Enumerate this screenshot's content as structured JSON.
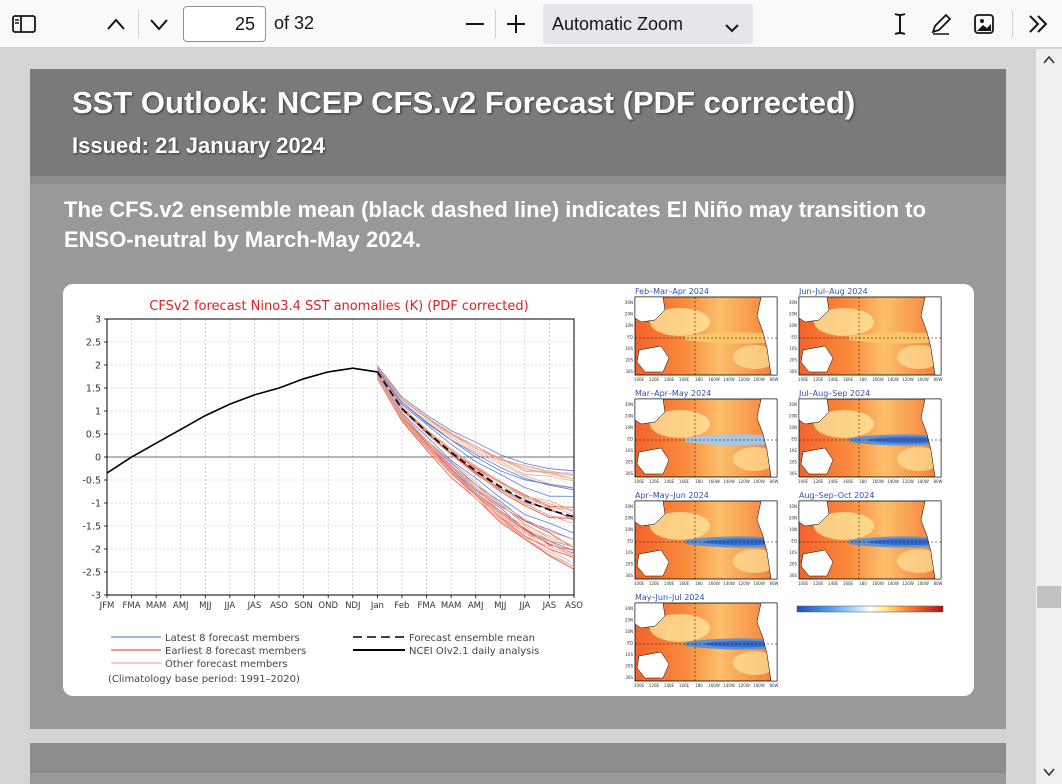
{
  "toolbar": {
    "page_number": "25",
    "page_count_label": "of 32",
    "zoom_label": "Automatic Zoom"
  },
  "slide": {
    "title": "SST Outlook: NCEP CFS.v2 Forecast (PDF corrected)",
    "issued": "Issued: 21 January 2024",
    "description": "The CFS.v2 ensemble mean (black dashed line) indicates El Niño may transition to ENSO-neutral by March-May 2024."
  },
  "plume": {
    "title": "CFSv2 forecast Nino3.4 SST anomalies (K) (PDF corrected)",
    "y_ticks": [
      "3",
      "2.5",
      "2",
      "1.5",
      "1",
      "0.5",
      "0",
      "-0.5",
      "-1",
      "-1.5",
      "-2",
      "-2.5",
      "-3"
    ],
    "x_ticks": [
      "JFM",
      "FMA",
      "MAM",
      "AMJ",
      "MJJ",
      "JJA",
      "JAS",
      "ASO",
      "SON",
      "OND",
      "NDJ",
      "Jan",
      "Feb",
      "FMA",
      "MAM",
      "AMJ",
      "MJJ",
      "JJA",
      "JAS",
      "ASO"
    ],
    "legend": {
      "latest": "Latest 8 forecast members",
      "earliest": "Earliest 8 forecast members",
      "other": "Other forecast members",
      "mean": "Forecast ensemble mean",
      "obs": "NCEI OIv2.1 daily analysis",
      "climatology": "(Climatology base period: 1991–2020)"
    },
    "colors": {
      "latest": "#4a6fdc",
      "earliest": "#e03a2a",
      "other": "#e7a08a"
    }
  },
  "maps": {
    "panels": [
      "Feb–Mar–Apr 2024",
      "Jun–Jul–Aug 2024",
      "Mar–Apr–May 2024",
      "Jul–Aug–Sep 2024",
      "Apr–May–Jun 2024",
      "Aug–Sep–Oct 2024",
      "May–Jun–Jul 2024"
    ],
    "lat_labels": [
      "30N",
      "20N",
      "10N",
      "EQ",
      "10S",
      "20S",
      "30S"
    ],
    "lon_labels": [
      "100E",
      "120E",
      "140E",
      "160E",
      "180",
      "160W",
      "140W",
      "120W",
      "100W",
      "80W"
    ]
  },
  "chart_data": {
    "type": "line",
    "title": "CFSv2 forecast Nino3.4 SST anomalies (K) (PDF corrected)",
    "categories": [
      "JFM",
      "FMA",
      "MAM",
      "AMJ",
      "MJJ",
      "JJA",
      "JAS",
      "ASO",
      "SON",
      "OND",
      "NDJ",
      "Jan",
      "Feb",
      "FMA",
      "MAM",
      "AMJ",
      "MJJ",
      "JJA",
      "JAS",
      "ASO"
    ],
    "ylim": [
      -3,
      3
    ],
    "grid": true,
    "series": [
      {
        "name": "NCEI OIv2.1 daily analysis",
        "values": [
          -0.35,
          0.0,
          0.3,
          0.6,
          0.9,
          1.15,
          1.35,
          1.5,
          1.7,
          1.85,
          1.93,
          1.85,
          null,
          null,
          null,
          null,
          null,
          null,
          null,
          null
        ]
      },
      {
        "name": "Forecast ensemble mean",
        "values": [
          null,
          null,
          null,
          null,
          null,
          null,
          null,
          null,
          null,
          null,
          null,
          1.85,
          1.05,
          0.55,
          0.1,
          -0.3,
          -0.65,
          -0.95,
          -1.15,
          -1.3
        ]
      }
    ]
  }
}
